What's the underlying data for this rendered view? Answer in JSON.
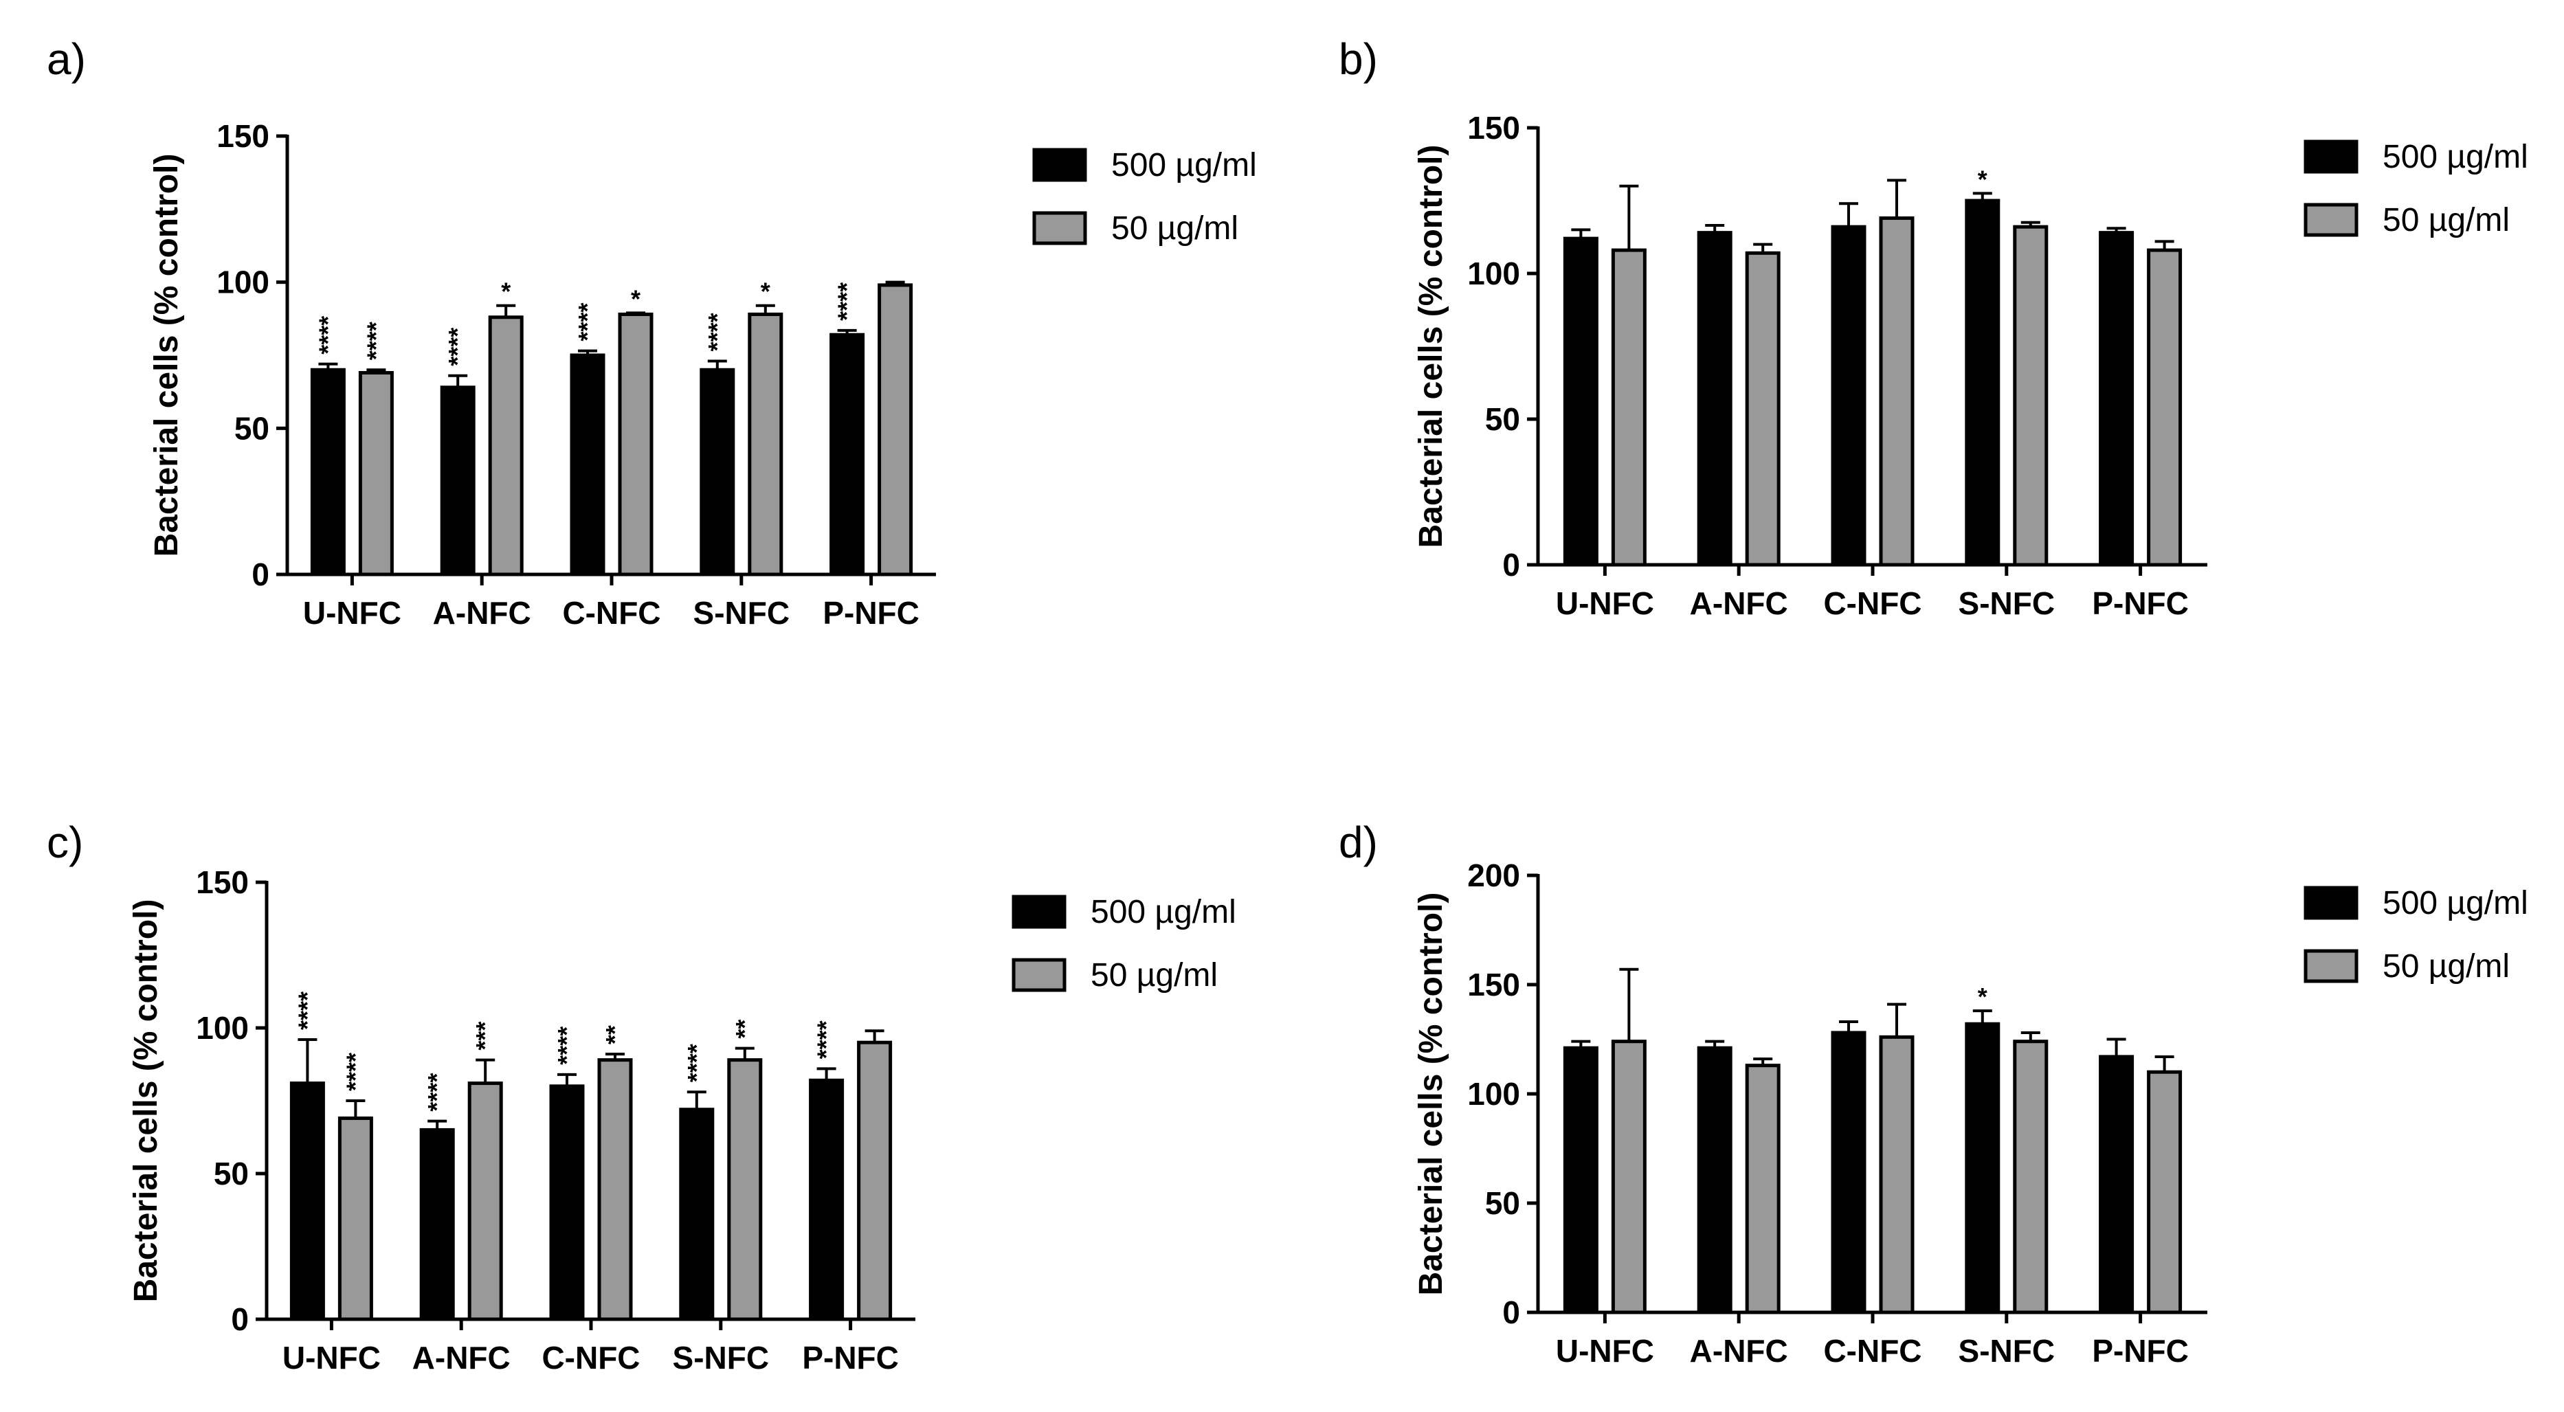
{
  "chart_data": [
    {
      "type": "bar",
      "panel_label": "a)",
      "categories": [
        "U-NFC",
        "A-NFC",
        "C-NFC",
        "S-NFC",
        "P-NFC"
      ],
      "ylabel": "Bacterial cells (% control)",
      "ylim": [
        0,
        150
      ],
      "yticks": [
        0,
        50,
        100,
        150
      ],
      "legend_position": "top-right",
      "series": [
        {
          "name": "500 µg/ml",
          "color": "#000000",
          "values": [
            70,
            64,
            75,
            70,
            82
          ],
          "errors": [
            2,
            4,
            1.5,
            3,
            1.5
          ],
          "significance": [
            "****",
            "****",
            "****",
            "****",
            "****"
          ]
        },
        {
          "name": "50 µg/ml",
          "color": "#999999",
          "values": [
            69,
            88,
            89,
            89,
            99
          ],
          "errors": [
            1,
            4,
            0.5,
            3,
            1
          ],
          "significance": [
            "****",
            "*",
            "*",
            "*",
            ""
          ]
        }
      ]
    },
    {
      "type": "bar",
      "panel_label": "b)",
      "categories": [
        "U-NFC",
        "A-NFC",
        "C-NFC",
        "S-NFC",
        "P-NFC"
      ],
      "ylabel": "Bacterial cells (% control)",
      "ylim": [
        0,
        150
      ],
      "yticks": [
        0,
        50,
        100,
        150
      ],
      "legend_position": "top-right",
      "series": [
        {
          "name": "500 µg/ml",
          "color": "#000000",
          "values": [
            112,
            114,
            116,
            125,
            114
          ],
          "errors": [
            3,
            2.5,
            8,
            2.5,
            1.5
          ],
          "significance": [
            "",
            "",
            "",
            "*",
            ""
          ]
        },
        {
          "name": "50 µg/ml",
          "color": "#999999",
          "values": [
            108,
            107,
            119,
            116,
            108
          ],
          "errors": [
            22,
            3,
            13,
            1.5,
            3
          ],
          "significance": [
            "",
            "",
            "",
            "",
            ""
          ]
        }
      ]
    },
    {
      "type": "bar",
      "panel_label": "c)",
      "categories": [
        "U-NFC",
        "A-NFC",
        "C-NFC",
        "S-NFC",
        "P-NFC"
      ],
      "ylabel": "Bacterial cells (% control)",
      "ylim": [
        0,
        150
      ],
      "yticks": [
        0,
        50,
        100,
        150
      ],
      "legend_position": "top-right",
      "series": [
        {
          "name": "500 µg/ml",
          "color": "#000000",
          "values": [
            81,
            65,
            80,
            72,
            82
          ],
          "errors": [
            15,
            3,
            4,
            6,
            4
          ],
          "significance": [
            "****",
            "****",
            "****",
            "****",
            "****"
          ]
        },
        {
          "name": "50 µg/ml",
          "color": "#999999",
          "values": [
            69,
            81,
            89,
            89,
            95
          ],
          "errors": [
            6,
            8,
            2,
            4,
            4
          ],
          "significance": [
            "****",
            "***",
            "**",
            "**",
            ""
          ]
        }
      ]
    },
    {
      "type": "bar",
      "panel_label": "d)",
      "categories": [
        "U-NFC",
        "A-NFC",
        "C-NFC",
        "S-NFC",
        "P-NFC"
      ],
      "ylabel": "Bacterial cells (% control)",
      "ylim": [
        0,
        200
      ],
      "yticks": [
        0,
        50,
        100,
        150,
        200
      ],
      "legend_position": "top-right",
      "series": [
        {
          "name": "500 µg/ml",
          "color": "#000000",
          "values": [
            121,
            121,
            128,
            132,
            117
          ],
          "errors": [
            3,
            3,
            5,
            6,
            8
          ],
          "significance": [
            "",
            "",
            "",
            "*",
            ""
          ]
        },
        {
          "name": "50 µg/ml",
          "color": "#999999",
          "values": [
            124,
            113,
            126,
            124,
            110
          ],
          "errors": [
            33,
            3,
            15,
            4,
            7
          ],
          "significance": [
            "",
            "",
            "",
            "",
            ""
          ]
        }
      ]
    }
  ]
}
